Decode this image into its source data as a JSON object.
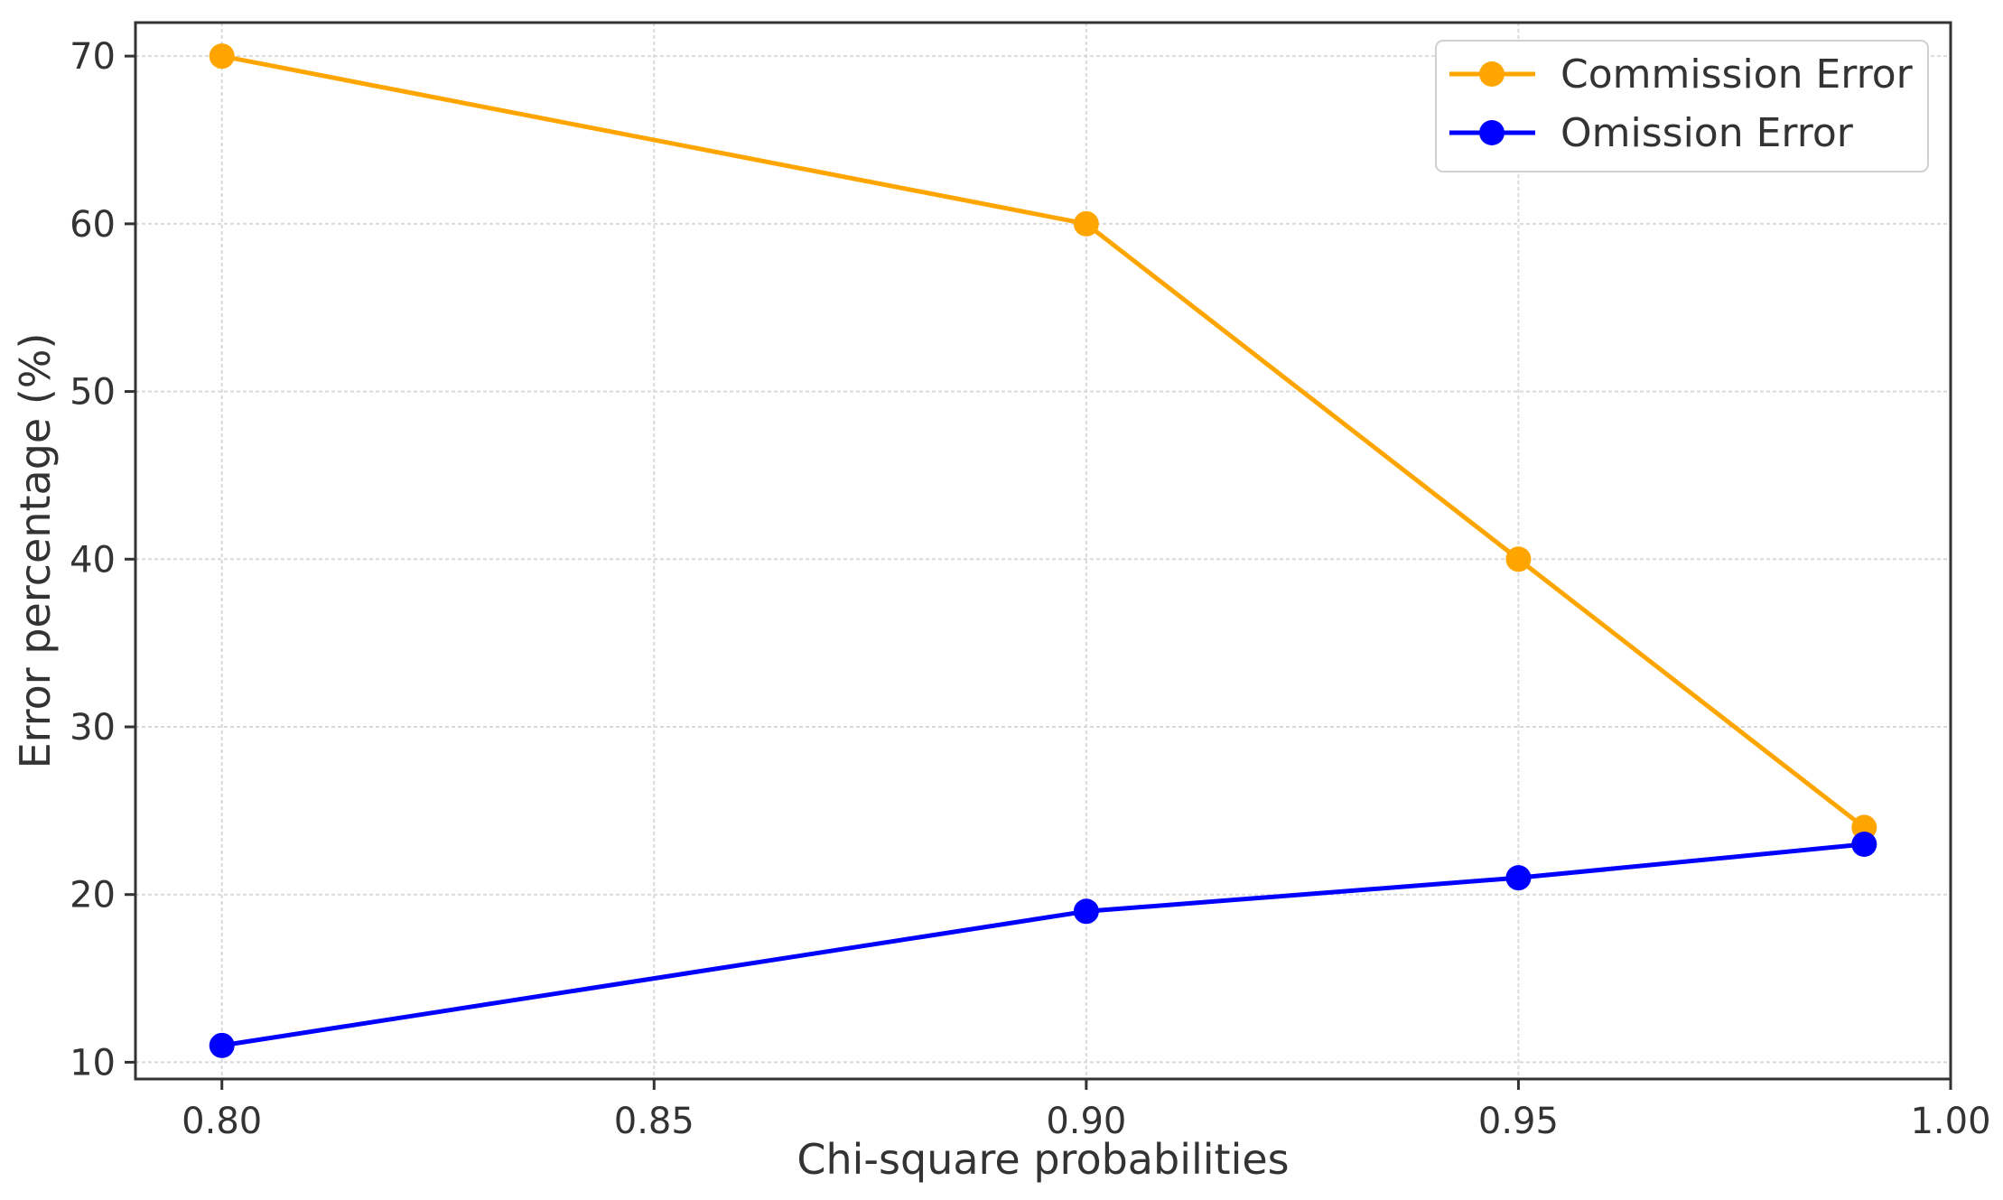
{
  "chart_data": {
    "type": "line",
    "title": "",
    "xlabel": "Chi-square probabilities",
    "ylabel": "Error percentage (%)",
    "xlim": [
      0.79,
      1.0
    ],
    "ylim": [
      9,
      72
    ],
    "xticks": [
      "0.80",
      "0.85",
      "0.90",
      "0.95",
      "1.00"
    ],
    "yticks": [
      "10",
      "20",
      "30",
      "40",
      "50",
      "60",
      "70"
    ],
    "grid": true,
    "legend_position": "top-right",
    "x": [
      0.8,
      0.9,
      0.95,
      0.99
    ],
    "series": [
      {
        "name": "Commission Error",
        "color": "#FFA500",
        "values": [
          70,
          60,
          40,
          24
        ]
      },
      {
        "name": "Omission Error",
        "color": "#0000FF",
        "values": [
          11,
          19,
          21,
          23
        ]
      }
    ]
  }
}
